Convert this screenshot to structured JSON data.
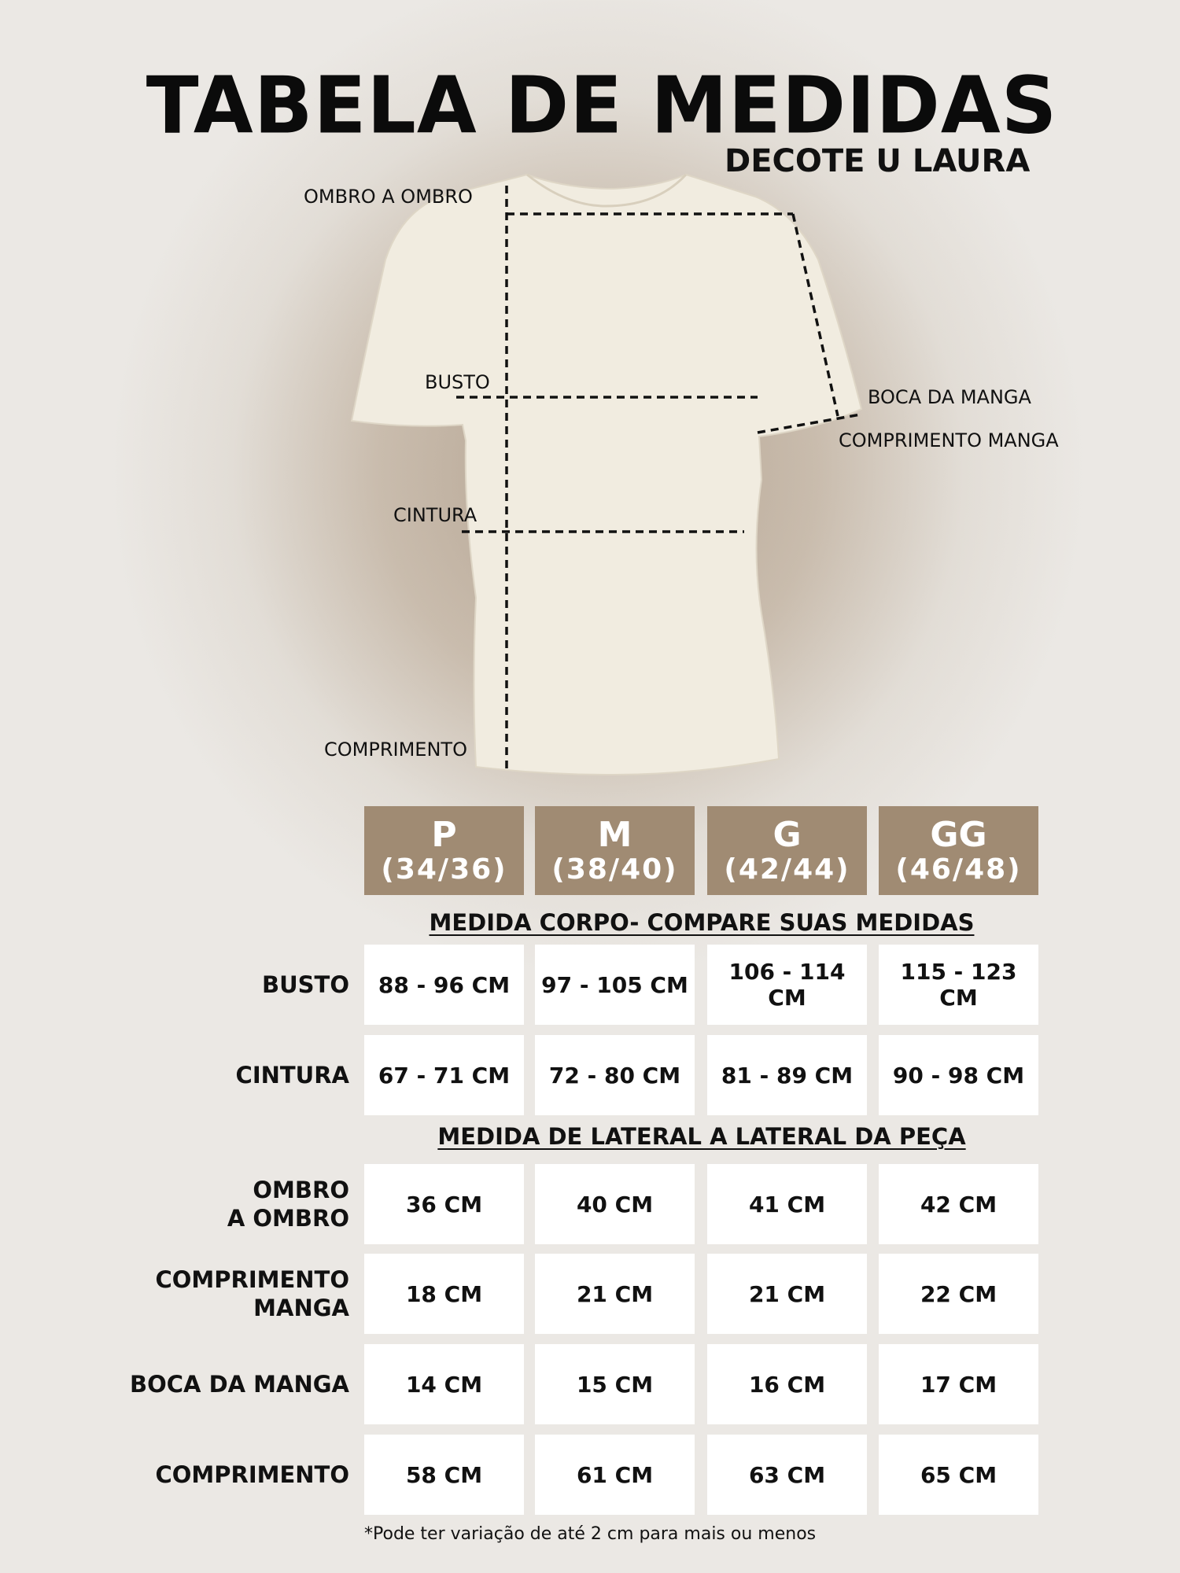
{
  "title": "TABELA DE MEDIDAS",
  "subtitle": "DECOTE U LAURA",
  "diagram_labels": {
    "ombro": "OMBRO A OMBRO",
    "busto": "BUSTO",
    "cintura": "CINTURA",
    "comprimento": "COMPRIMENTO",
    "boca_manga": "BOCA DA MANGA",
    "comprimento_manga": "COMPRIMENTO MANGA"
  },
  "colors": {
    "header": "#a08b73",
    "shirt": "#f1ece0"
  },
  "sizes": [
    {
      "size": "P",
      "range": "(34/36)"
    },
    {
      "size": "M",
      "range": "(38/40)"
    },
    {
      "size": "G",
      "range": "(42/44)"
    },
    {
      "size": "GG",
      "range": "(46/48)"
    }
  ],
  "section1": {
    "title": "MEDIDA CORPO- COMPARE SUAS MEDIDAS",
    "rows": [
      {
        "label": "BUSTO",
        "values": [
          "88 - 96 CM",
          "97 - 105 CM",
          "106 - 114 CM",
          "115 - 123 CM"
        ]
      },
      {
        "label": "CINTURA",
        "values": [
          "67 - 71 CM",
          "72 - 80 CM",
          "81 - 89 CM",
          "90 - 98 CM"
        ]
      }
    ]
  },
  "section2": {
    "title": "MEDIDA  DE LATERAL A LATERAL DA PEÇA",
    "rows": [
      {
        "label": "OMBRO\nA OMBRO",
        "values": [
          "36 CM",
          "40 CM",
          "41 CM",
          "42 CM"
        ]
      },
      {
        "label": "COMPRIMENTO\nMANGA",
        "values": [
          "18 CM",
          "21 CM",
          "21 CM",
          "22 CM"
        ]
      },
      {
        "label": "BOCA DA MANGA",
        "values": [
          "14 CM",
          "15 CM",
          "16 CM",
          "17 CM"
        ]
      },
      {
        "label": "COMPRIMENTO",
        "values": [
          "58 CM",
          "61 CM",
          "63 CM",
          "65 CM"
        ]
      }
    ]
  },
  "note": "*Pode ter variação de até 2 cm para mais ou menos"
}
